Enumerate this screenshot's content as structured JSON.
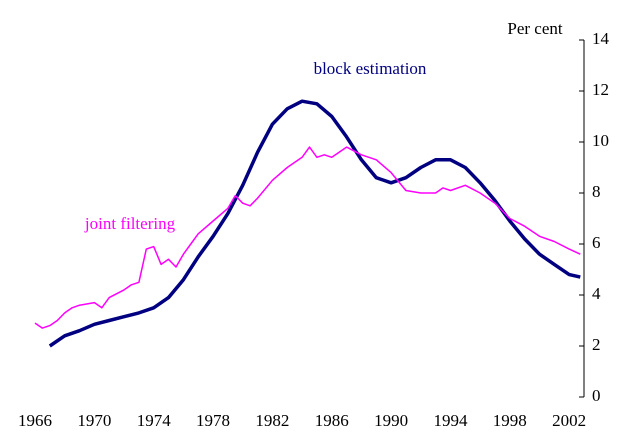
{
  "chart_data": {
    "type": "line",
    "y_label": "Per cent",
    "xlim": [
      1966,
      2003
    ],
    "xticks": [
      1966,
      1970,
      1974,
      1978,
      1982,
      1986,
      1990,
      1994,
      1998,
      2002
    ],
    "ylim": [
      0,
      14
    ],
    "yticks": [
      0,
      2,
      4,
      6,
      8,
      10,
      12,
      14
    ],
    "series": [
      {
        "name": "block estimation",
        "color": "#000080",
        "x": [
          1967,
          1968,
          1969,
          1970,
          1971,
          1972,
          1973,
          1974,
          1975,
          1976,
          1977,
          1978,
          1979,
          1980,
          1981,
          1982,
          1983,
          1984,
          1985,
          1986,
          1987,
          1988,
          1989,
          1990,
          1991,
          1992,
          1993,
          1994,
          1995,
          1996,
          1997,
          1998,
          1999,
          2000,
          2001,
          2002,
          2002.75
        ],
        "values": [
          2.0,
          2.4,
          2.6,
          2.85,
          3.0,
          3.15,
          3.3,
          3.5,
          3.9,
          4.6,
          5.5,
          6.3,
          7.2,
          8.3,
          9.6,
          10.7,
          11.3,
          11.6,
          11.5,
          11.0,
          10.2,
          9.3,
          8.6,
          8.4,
          8.6,
          9.0,
          9.3,
          9.3,
          9.0,
          8.4,
          7.7,
          6.9,
          6.2,
          5.6,
          5.2,
          4.8,
          4.7
        ]
      },
      {
        "name": "joint filtering",
        "color": "#ff00ff",
        "x": [
          1966,
          1966.5,
          1967,
          1967.5,
          1968,
          1968.5,
          1969,
          1970,
          1970.5,
          1971,
          1972,
          1972.5,
          1973,
          1973.5,
          1974,
          1974.5,
          1975,
          1975.5,
          1976,
          1976.5,
          1977,
          1978,
          1979,
          1979.5,
          1980,
          1980.5,
          1981,
          1982,
          1983,
          1984,
          1984.5,
          1985,
          1985.5,
          1986,
          1987,
          1988,
          1989,
          1990,
          1991,
          1992,
          1993,
          1993.5,
          1994,
          1995,
          1996,
          1997,
          1998,
          1999,
          2000,
          2001,
          2002,
          2002.75
        ],
        "values": [
          2.9,
          2.7,
          2.8,
          3.0,
          3.3,
          3.5,
          3.6,
          3.7,
          3.5,
          3.9,
          4.2,
          4.4,
          4.5,
          5.8,
          5.9,
          5.2,
          5.4,
          5.1,
          5.6,
          6.0,
          6.4,
          6.9,
          7.4,
          7.9,
          7.6,
          7.5,
          7.8,
          8.5,
          9.0,
          9.4,
          9.8,
          9.4,
          9.5,
          9.4,
          9.8,
          9.5,
          9.3,
          8.8,
          8.1,
          8.0,
          8.0,
          8.2,
          8.1,
          8.3,
          8.0,
          7.6,
          7.0,
          6.7,
          6.3,
          6.1,
          5.8,
          5.6
        ]
      }
    ]
  }
}
